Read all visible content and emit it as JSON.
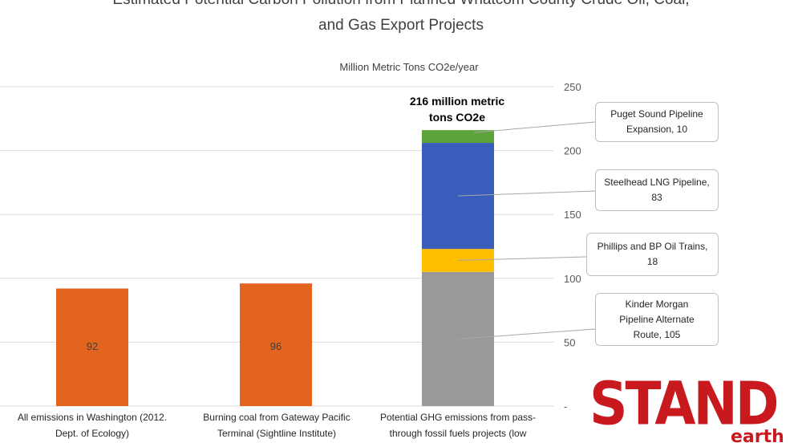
{
  "chart_data": {
    "type": "bar",
    "title_line1": "Estimated Potential Carbon Pollution from Planned Whatcom County Crude Oil, Coal,",
    "title_line2": "and Gas Export Projects",
    "ylabel": "Million Metric Tons CO2e/year",
    "ylim": [
      0,
      250
    ],
    "yticks": [
      "250",
      "200",
      "150",
      "100",
      "50",
      "-"
    ],
    "ytick_values": [
      250,
      200,
      150,
      100,
      50,
      0
    ],
    "grid": true,
    "categories": [
      {
        "line1": "All emissions in Washington (2012.",
        "line2": "Dept. of Ecology)"
      },
      {
        "line1": "Burning coal from Gateway Pacific",
        "line2": "Terminal (Sightline Institute)"
      },
      {
        "line1": "Potential GHG emissions from pass-",
        "line2": "through fossil fuels projects (low"
      }
    ],
    "simple_bars": [
      {
        "category_index": 0,
        "value": 92,
        "label": "92",
        "color": "#e3641e"
      },
      {
        "category_index": 1,
        "value": 96,
        "label": "96",
        "color": "#e3641e"
      }
    ],
    "stacked_bar": {
      "category_index": 2,
      "total_label_line1": "216  million metric",
      "total_label_line2": "tons CO2e",
      "segments": [
        {
          "value": 105,
          "color": "#999999",
          "label_line1": "Kinder Morgan",
          "label_line2": "Pipeline Alternate",
          "label_line3": "Route,  105"
        },
        {
          "value": 18,
          "color": "#ffbf00",
          "label_line1": "Phillips and BP Oil Trains,",
          "label_line2": "18",
          "label_line3": ""
        },
        {
          "value": 83,
          "color": "#3a5dbb",
          "label_line1": "Steelhead LNG Pipeline,",
          "label_line2": "83",
          "label_line3": ""
        },
        {
          "value": 10,
          "color": "#5ca33a",
          "label_line1": "Puget Sound Pipeline",
          "label_line2": "Expansion,  10",
          "label_line3": ""
        }
      ]
    }
  },
  "logo": {
    "main": "STAND",
    "sub": "earth",
    "color": "#c8191f"
  }
}
